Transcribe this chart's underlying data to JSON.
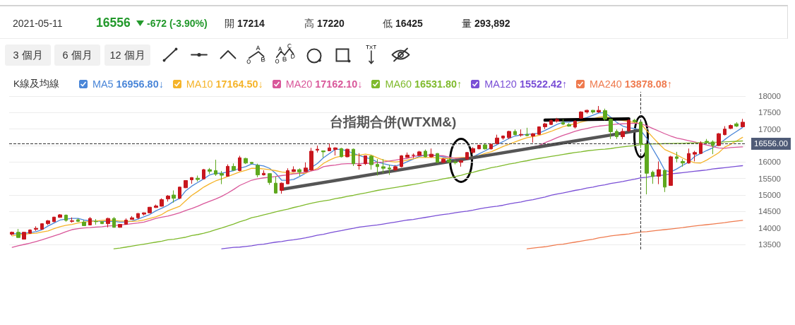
{
  "chart_data": {
    "type": "candlestick",
    "title": "台指期合併(WTXM&)",
    "legend_title": "K線及均線",
    "categories": [
      null,
      null,
      null,
      null,
      null,
      null,
      null,
      null,
      null,
      null,
      null,
      null,
      null,
      null,
      null,
      null,
      null,
      null,
      null,
      null,
      null,
      null,
      null,
      null,
      null,
      null,
      null,
      null,
      null,
      null,
      null,
      null,
      null,
      null,
      null,
      null,
      null,
      null,
      null,
      null,
      null,
      null,
      null,
      null,
      null,
      null,
      null,
      null,
      null,
      null,
      null,
      null,
      null,
      null,
      null,
      null,
      null,
      null,
      null,
      null,
      null,
      null,
      null,
      null,
      null,
      null,
      null,
      null,
      null,
      null,
      null,
      null,
      null,
      null,
      null,
      null,
      null,
      null,
      null,
      null,
      null,
      null,
      null,
      null,
      null,
      null,
      null,
      null,
      null,
      null,
      null,
      null,
      null,
      null,
      null,
      null,
      null,
      null,
      null,
      null,
      null,
      null,
      null,
      null,
      null,
      null,
      null,
      null,
      null,
      null,
      null,
      null,
      null,
      null,
      null,
      null,
      null,
      null,
      null,
      null,
      null,
      null,
      null
    ],
    "ohlc": [
      [
        13810,
        13890,
        13770,
        13870
      ],
      [
        13870,
        13970,
        13710,
        13710
      ],
      [
        13660,
        13880,
        13660,
        13870
      ],
      [
        13840,
        13960,
        13820,
        13940
      ],
      [
        13960,
        14050,
        13910,
        13990
      ],
      [
        13960,
        14140,
        13960,
        14130
      ],
      [
        14130,
        14240,
        14090,
        14220
      ],
      [
        14190,
        14340,
        14180,
        14330
      ],
      [
        14320,
        14420,
        14310,
        14400
      ],
      [
        14390,
        14410,
        14190,
        14230
      ],
      [
        14200,
        14320,
        14160,
        14220
      ],
      [
        14250,
        14290,
        14180,
        14200
      ],
      [
        14180,
        14240,
        14060,
        14070
      ],
      [
        14090,
        14330,
        14090,
        14290
      ],
      [
        14200,
        14270,
        14100,
        14190
      ],
      [
        14190,
        14200,
        14120,
        14130
      ],
      [
        14130,
        14310,
        14020,
        14290
      ],
      [
        14290,
        14330,
        14010,
        14020
      ],
      [
        14020,
        14120,
        14010,
        14110
      ],
      [
        14110,
        14290,
        14100,
        14240
      ],
      [
        14260,
        14360,
        14250,
        14310
      ],
      [
        14310,
        14450,
        14270,
        14440
      ],
      [
        14420,
        14470,
        14380,
        14460
      ],
      [
        14460,
        14640,
        14440,
        14630
      ],
      [
        14620,
        14710,
        14610,
        14670
      ],
      [
        14660,
        14900,
        14650,
        14860
      ],
      [
        14880,
        15000,
        14800,
        14970
      ],
      [
        15000,
        15140,
        14770,
        14900
      ],
      [
        14900,
        15250,
        14880,
        15240
      ],
      [
        15220,
        15450,
        15210,
        15440
      ],
      [
        15460,
        15540,
        15340,
        15530
      ],
      [
        15510,
        15590,
        15410,
        15470
      ],
      [
        15490,
        15790,
        15480,
        15770
      ],
      [
        15770,
        15820,
        15640,
        15720
      ],
      [
        15740,
        16070,
        15580,
        15630
      ],
      [
        15650,
        15730,
        15330,
        15600
      ],
      [
        15570,
        15930,
        15560,
        15870
      ],
      [
        15870,
        15960,
        15740,
        15750
      ],
      [
        15740,
        16190,
        15720,
        16130
      ],
      [
        16110,
        16130,
        15940,
        15970
      ],
      [
        15990,
        16000,
        15930,
        15960
      ],
      [
        15900,
        15950,
        15540,
        15610
      ],
      [
        15610,
        15750,
        15590,
        15660
      ],
      [
        15650,
        15660,
        15310,
        15380
      ],
      [
        15360,
        15560,
        15040,
        15060
      ],
      [
        15140,
        15380,
        15040,
        15360
      ],
      [
        15340,
        15810,
        15330,
        15740
      ],
      [
        15710,
        15870,
        15700,
        15770
      ],
      [
        15770,
        15810,
        15570,
        15700
      ],
      [
        15710,
        15990,
        15700,
        15820
      ],
      [
        15760,
        16430,
        15740,
        16330
      ],
      [
        16360,
        16500,
        16290,
        16390
      ],
      [
        16340,
        16350,
        16140,
        16310
      ],
      [
        16340,
        16560,
        16340,
        16430
      ],
      [
        16380,
        16450,
        16200,
        16430
      ],
      [
        16410,
        16430,
        16140,
        16160
      ],
      [
        16160,
        16410,
        16140,
        16390
      ],
      [
        16390,
        16410,
        15880,
        15950
      ],
      [
        15890,
        16270,
        15770,
        15910
      ],
      [
        15950,
        16200,
        15910,
        16190
      ],
      [
        16180,
        16220,
        15770,
        15920
      ],
      [
        15930,
        16090,
        15590,
        15860
      ],
      [
        15860,
        16090,
        15660,
        15810
      ],
      [
        15820,
        15920,
        15610,
        15790
      ],
      [
        15760,
        15910,
        15740,
        15860
      ],
      [
        15860,
        16210,
        15840,
        16190
      ],
      [
        16140,
        16290,
        16130,
        16210
      ],
      [
        16200,
        16260,
        16120,
        16210
      ],
      [
        16200,
        16340,
        16190,
        16310
      ],
      [
        16330,
        16380,
        16140,
        16160
      ],
      [
        16160,
        16410,
        16130,
        16240
      ],
      [
        16260,
        16270,
        15970,
        15990
      ],
      [
        15990,
        16130,
        15970,
        16090
      ],
      [
        16070,
        16110,
        15950,
        16000
      ],
      [
        16000,
        16060,
        15930,
        15980
      ],
      [
        15990,
        16060,
        15860,
        16040
      ],
      [
        16090,
        16300,
        16080,
        16290
      ],
      [
        16290,
        16450,
        16260,
        16410
      ],
      [
        16400,
        16520,
        16390,
        16510
      ],
      [
        16520,
        16540,
        16380,
        16400
      ],
      [
        16400,
        16560,
        16380,
        16540
      ],
      [
        16560,
        16830,
        16540,
        16730
      ],
      [
        16730,
        16810,
        16680,
        16790
      ],
      [
        16740,
        16950,
        16700,
        16930
      ],
      [
        16930,
        16990,
        16810,
        16830
      ],
      [
        16820,
        16990,
        16770,
        16840
      ],
      [
        16840,
        17040,
        16790,
        16800
      ],
      [
        16790,
        16880,
        16590,
        16860
      ],
      [
        16840,
        17080,
        16830,
        17070
      ],
      [
        17070,
        17190,
        17000,
        17160
      ],
      [
        17140,
        17290,
        17130,
        17260
      ],
      [
        17240,
        17340,
        17200,
        17290
      ],
      [
        17200,
        17300,
        17120,
        17150
      ],
      [
        17140,
        17180,
        17070,
        17090
      ],
      [
        17060,
        17270,
        17020,
        17240
      ],
      [
        17330,
        17540,
        17310,
        17520
      ],
      [
        17520,
        17590,
        17470,
        17570
      ],
      [
        17570,
        17580,
        17470,
        17520
      ],
      [
        17520,
        17700,
        17490,
        17570
      ],
      [
        17560,
        17620,
        17260,
        17300
      ],
      [
        17300,
        17320,
        16700,
        16920
      ],
      [
        16930,
        16990,
        16700,
        16770
      ],
      [
        16770,
        17020,
        16700,
        16930
      ],
      [
        16950,
        17290,
        16910,
        17270
      ],
      [
        17270,
        17310,
        17190,
        17228
      ],
      [
        17214,
        17220,
        16425,
        16556
      ],
      [
        16520,
        16540,
        15020,
        15660
      ],
      [
        15690,
        15740,
        15340,
        15560
      ],
      [
        15570,
        16020,
        15330,
        15770
      ],
      [
        15750,
        15760,
        15090,
        15240
      ],
      [
        15290,
        16190,
        15280,
        16160
      ],
      [
        16160,
        16310,
        15990,
        16110
      ],
      [
        16020,
        16090,
        15860,
        15970
      ],
      [
        15970,
        16410,
        15950,
        16260
      ],
      [
        16240,
        16340,
        16020,
        16290
      ],
      [
        16260,
        16630,
        16240,
        16570
      ],
      [
        16630,
        16700,
        16570,
        16590
      ],
      [
        16610,
        16660,
        16240,
        16500
      ],
      [
        16500,
        16880,
        16490,
        16860
      ],
      [
        16830,
        17090,
        16810,
        17000
      ],
      [
        17020,
        17140,
        17000,
        17110
      ],
      [
        17160,
        17210,
        17060,
        17090
      ],
      [
        17070,
        17310,
        17060,
        17210
      ]
    ],
    "colors": [
      "#c8161d",
      "#5ea81e",
      "#c8161d",
      "#c8161d",
      "#c8161d",
      "#c8161d",
      "#c8161d",
      "#c8161d",
      "#c8161d",
      "#5ea81e",
      "#c8161d",
      "#5ea81e",
      "#5ea81e",
      "#c8161d",
      "#5ea81e",
      "#5ea81e",
      "#c8161d",
      "#5ea81e",
      "#c8161d",
      "#c8161d",
      "#c8161d",
      "#c8161d",
      "#c8161d",
      "#c8161d",
      "#c8161d",
      "#c8161d",
      "#c8161d",
      "#5ea81e",
      "#c8161d",
      "#c8161d",
      "#c8161d",
      "#5ea81e",
      "#c8161d",
      "#5ea81e",
      "#5ea81e",
      "#5ea81e",
      "#c8161d",
      "#5ea81e",
      "#c8161d",
      "#5ea81e",
      "#5ea81e",
      "#5ea81e",
      "#c8161d",
      "#5ea81e",
      "#5ea81e",
      "#c8161d",
      "#c8161d",
      "#c8161d",
      "#5ea81e",
      "#c8161d",
      "#c8161d",
      "#c8161d",
      "#5ea81e",
      "#c8161d",
      "#c8161d",
      "#5ea81e",
      "#c8161d",
      "#5ea81e",
      "#c8161d",
      "#c8161d",
      "#5ea81e",
      "#5ea81e",
      "#5ea81e",
      "#5ea81e",
      "#c8161d",
      "#c8161d",
      "#c8161d",
      "#c8161d",
      "#c8161d",
      "#5ea81e",
      "#c8161d",
      "#5ea81e",
      "#c8161d",
      "#5ea81e",
      "#5ea81e",
      "#c8161d",
      "#c8161d",
      "#c8161d",
      "#c8161d",
      "#5ea81e",
      "#c8161d",
      "#c8161d",
      "#c8161d",
      "#c8161d",
      "#5ea81e",
      "#c8161d",
      "#5ea81e",
      "#c8161d",
      "#c8161d",
      "#c8161d",
      "#c8161d",
      "#c8161d",
      "#5ea81e",
      "#5ea81e",
      "#c8161d",
      "#c8161d",
      "#c8161d",
      "#5ea81e",
      "#c8161d",
      "#5ea81e",
      "#5ea81e",
      "#5ea81e",
      "#c8161d",
      "#c8161d",
      "#5ea81e",
      "#5ea81e",
      "#5ea81e",
      "#5ea81e",
      "#c8161d",
      "#5ea81e",
      "#c8161d",
      "#5ea81e",
      "#5ea81e",
      "#c8161d",
      "#c8161d",
      "#c8161d",
      "#5ea81e",
      "#5ea81e",
      "#c8161d",
      "#c8161d",
      "#c8161d",
      "#5ea81e",
      "#c8161d"
    ],
    "series": [
      {
        "type": "line",
        "name": "MA5 16956.80↓",
        "color": "#4a86d8",
        "values": [
          13820,
          13830,
          13840,
          13860,
          13890,
          13950,
          14060,
          14150,
          14240,
          14270,
          14290,
          14290,
          14240,
          14220,
          14210,
          14200,
          14200,
          14200,
          14180,
          14180,
          14210,
          14270,
          14340,
          14410,
          14520,
          14600,
          14690,
          14810,
          14900,
          15130,
          15270,
          15380,
          15490,
          15610,
          15660,
          15660,
          15700,
          15740,
          15810,
          15860,
          15940,
          15910,
          15880,
          15810,
          15660,
          15450,
          15450,
          15470,
          15560,
          15660,
          15840,
          15960,
          16130,
          16260,
          16390,
          16380,
          16340,
          16260,
          16200,
          16140,
          16090,
          16000,
          15950,
          15910,
          15880,
          15930,
          16010,
          16090,
          16170,
          16210,
          16220,
          16190,
          16160,
          16100,
          16070,
          16040,
          16090,
          16160,
          16250,
          16340,
          16440,
          16530,
          16620,
          16720,
          16790,
          16820,
          16840,
          16850,
          16880,
          16960,
          17050,
          17140,
          17210,
          17210,
          17250,
          17300,
          17350,
          17420,
          17490,
          17500,
          17360,
          17200,
          17090,
          17040,
          17020,
          16956.8,
          16720,
          16400,
          16090,
          15750,
          15700,
          15790,
          15900,
          16000,
          16170,
          16260,
          16350,
          16430,
          16540,
          16680,
          16810,
          16930,
          17050
        ]
      },
      {
        "type": "line",
        "name": "MA10 17164.50↓",
        "color": "#f5b42a",
        "values": [
          13760,
          13790,
          13810,
          13830,
          13840,
          13880,
          13910,
          13980,
          14040,
          14080,
          14110,
          14150,
          14180,
          14200,
          14210,
          14230,
          14240,
          14230,
          14210,
          14210,
          14200,
          14210,
          14240,
          14290,
          14340,
          14410,
          14520,
          14590,
          14660,
          14830,
          14990,
          15110,
          15240,
          15340,
          15430,
          15490,
          15560,
          15630,
          15700,
          15750,
          15810,
          15810,
          15790,
          15770,
          15740,
          15700,
          15680,
          15660,
          15660,
          15660,
          15740,
          15810,
          15960,
          16060,
          16140,
          16180,
          16210,
          16210,
          16210,
          16240,
          16210,
          16130,
          16060,
          16020,
          16000,
          16020,
          16060,
          16100,
          16140,
          16140,
          16140,
          16130,
          16110,
          16110,
          16130,
          16140,
          16140,
          16160,
          16200,
          16260,
          16310,
          16390,
          16470,
          16540,
          16610,
          16680,
          16740,
          16770,
          16810,
          16870,
          16930,
          17000,
          17070,
          17120,
          17160,
          17210,
          17260,
          17310,
          17360,
          17390,
          17330,
          17290,
          17260,
          17230,
          17200,
          17164.5,
          16950,
          16750,
          16560,
          16380,
          16300,
          16220,
          16120,
          16040,
          15980,
          15970,
          16060,
          16170,
          16280,
          16450,
          16540,
          16640,
          16750
        ]
      },
      {
        "type": "line",
        "name": "MA20 17162.10↓",
        "color": "#d9579a",
        "values": [
          13410,
          13460,
          13500,
          13540,
          13590,
          13640,
          13700,
          13760,
          13820,
          13890,
          13950,
          13980,
          14000,
          14010,
          14030,
          14040,
          14060,
          14070,
          14090,
          14110,
          14130,
          14150,
          14180,
          14230,
          14290,
          14330,
          14360,
          14410,
          14460,
          14530,
          14590,
          14660,
          14740,
          14810,
          14880,
          14960,
          15060,
          15170,
          15290,
          15370,
          15450,
          15490,
          15520,
          15540,
          15560,
          15590,
          15610,
          15640,
          15660,
          15690,
          15730,
          15770,
          15860,
          15890,
          15910,
          15940,
          15950,
          15950,
          15950,
          15960,
          15960,
          15990,
          16000,
          16030,
          16060,
          16090,
          16110,
          16160,
          16210,
          16210,
          16210,
          16200,
          16190,
          16150,
          16110,
          16120,
          16120,
          16140,
          16160,
          16200,
          16240,
          16260,
          16290,
          16320,
          16360,
          16390,
          16430,
          16460,
          16500,
          16590,
          16660,
          16740,
          16810,
          16870,
          16930,
          16980,
          17020,
          17060,
          17090,
          17110,
          17130,
          17150,
          17160,
          17170,
          17180,
          17162.1,
          17100,
          17020,
          16940,
          16860,
          16790,
          16730,
          16690,
          16650,
          16610,
          16560,
          16520,
          16470,
          16430,
          16420,
          16440,
          16450,
          16460
        ]
      },
      {
        "type": "line",
        "name": "MA60 16531.80↑",
        "color": "#7fba2c",
        "values": [
          null,
          null,
          null,
          null,
          null,
          null,
          null,
          null,
          null,
          null,
          null,
          null,
          null,
          null,
          null,
          null,
          null,
          13370,
          13390,
          13420,
          13450,
          13480,
          13510,
          13540,
          13570,
          13600,
          13640,
          13660,
          13690,
          13720,
          13770,
          13800,
          13840,
          13890,
          13950,
          14000,
          14060,
          14120,
          14190,
          14240,
          14310,
          14350,
          14400,
          14440,
          14490,
          14530,
          14570,
          14620,
          14660,
          14710,
          14750,
          14790,
          14820,
          14850,
          14890,
          14920,
          14960,
          14990,
          15030,
          15060,
          15100,
          15140,
          15170,
          15200,
          15230,
          15260,
          15290,
          15320,
          15350,
          15390,
          15420,
          15450,
          15490,
          15520,
          15560,
          15600,
          15650,
          15690,
          15740,
          15780,
          15830,
          15860,
          15900,
          15940,
          15970,
          16010,
          16040,
          16080,
          16110,
          16140,
          16170,
          16200,
          16230,
          16260,
          16290,
          16310,
          16340,
          16360,
          16380,
          16390,
          16410,
          16440,
          16460,
          16480,
          16500,
          16531.8,
          16540,
          16550,
          16550,
          16560,
          16560,
          16570,
          16570,
          16580,
          16580,
          16590,
          16590,
          16600,
          16600,
          16610,
          16620,
          16630,
          16640
        ]
      },
      {
        "type": "line",
        "name": "MA120 15522.42↑",
        "color": "#7a4fd6",
        "values": [
          null,
          null,
          null,
          null,
          null,
          null,
          null,
          null,
          null,
          null,
          null,
          null,
          null,
          null,
          null,
          null,
          null,
          null,
          null,
          null,
          null,
          null,
          null,
          null,
          null,
          null,
          null,
          null,
          null,
          null,
          null,
          null,
          null,
          null,
          null,
          13370,
          13390,
          13410,
          13420,
          13440,
          13460,
          13490,
          13510,
          13540,
          13570,
          13590,
          13620,
          13640,
          13670,
          13700,
          13740,
          13780,
          13810,
          13850,
          13890,
          13920,
          13960,
          13990,
          14030,
          14050,
          14070,
          14090,
          14120,
          14150,
          14180,
          14210,
          14240,
          14260,
          14290,
          14320,
          14350,
          14380,
          14410,
          14430,
          14460,
          14490,
          14510,
          14540,
          14580,
          14610,
          14640,
          14660,
          14690,
          14730,
          14760,
          14790,
          14830,
          14860,
          14900,
          14940,
          14990,
          15030,
          15060,
          15100,
          15140,
          15170,
          15210,
          15240,
          15280,
          15310,
          15350,
          15380,
          15410,
          15450,
          15480,
          15522.42,
          15540,
          15570,
          15590,
          15610,
          15640,
          15660,
          15680,
          15700,
          15720,
          15740,
          15760,
          15790,
          15810,
          15830,
          15850,
          15870,
          15890
        ]
      },
      {
        "type": "line",
        "name": "MA240 13878.08↑",
        "color": "#ef7b4f",
        "values": [
          null,
          null,
          null,
          null,
          null,
          null,
          null,
          null,
          null,
          null,
          null,
          null,
          null,
          null,
          null,
          null,
          null,
          null,
          null,
          null,
          null,
          null,
          null,
          null,
          null,
          null,
          null,
          null,
          null,
          null,
          null,
          null,
          null,
          null,
          null,
          null,
          null,
          null,
          null,
          null,
          null,
          null,
          null,
          null,
          null,
          null,
          null,
          null,
          null,
          null,
          null,
          null,
          null,
          null,
          null,
          null,
          null,
          null,
          null,
          null,
          null,
          null,
          null,
          null,
          null,
          null,
          null,
          null,
          null,
          null,
          null,
          null,
          null,
          null,
          null,
          null,
          null,
          null,
          null,
          null,
          null,
          null,
          null,
          null,
          null,
          null,
          13370,
          13390,
          13410,
          13430,
          13460,
          13490,
          13510,
          13540,
          13570,
          13600,
          13630,
          13660,
          13700,
          13730,
          13760,
          13780,
          13800,
          13820,
          13850,
          13878.08,
          13890,
          13910,
          13930,
          13950,
          13970,
          13990,
          14010,
          14040,
          14060,
          14080,
          14100,
          14120,
          14140,
          14160,
          14190,
          14210,
          14230
        ]
      },
      {
        "type": "line",
        "color": "#555555",
        "values": [
          null,
          null,
          null,
          null,
          null,
          null,
          null,
          null,
          null,
          null,
          null,
          null,
          null,
          null,
          null,
          null,
          null,
          null,
          null,
          null,
          null,
          null,
          null,
          null,
          null,
          null,
          null,
          null,
          null,
          null,
          null,
          null,
          null,
          null,
          null,
          null,
          null,
          null,
          null,
          null,
          null,
          null,
          null,
          null,
          null,
          15170,
          null,
          null,
          null,
          null,
          null,
          null,
          null,
          null,
          null,
          null,
          null,
          null,
          null,
          null,
          null,
          null,
          null,
          null,
          null,
          null,
          null,
          null,
          null,
          null,
          null,
          null,
          null,
          null,
          null,
          null,
          null,
          null,
          null,
          null,
          null,
          null,
          null,
          null,
          null,
          null,
          null,
          null,
          null,
          null,
          null,
          null,
          null,
          null,
          null,
          null,
          null,
          null,
          null,
          null,
          null,
          null,
          null,
          null,
          null,
          16970,
          null,
          null,
          null,
          null,
          null,
          null,
          null,
          null,
          null,
          null,
          null,
          null,
          null,
          null,
          null,
          null,
          null
        ]
      },
      {
        "type": "line",
        "color": "#000000",
        "values": [
          null,
          null,
          null,
          null,
          null,
          null,
          null,
          null,
          null,
          null,
          null,
          null,
          null,
          null,
          null,
          null,
          null,
          null,
          null,
          null,
          null,
          null,
          null,
          null,
          null,
          null,
          null,
          null,
          null,
          null,
          null,
          null,
          null,
          null,
          null,
          null,
          null,
          null,
          null,
          null,
          null,
          null,
          null,
          null,
          null,
          null,
          null,
          null,
          null,
          null,
          null,
          null,
          null,
          null,
          null,
          null,
          null,
          null,
          null,
          null,
          null,
          null,
          null,
          null,
          null,
          null,
          null,
          null,
          null,
          null,
          null,
          null,
          null,
          null,
          null,
          null,
          null,
          null,
          null,
          null,
          null,
          null,
          null,
          null,
          null,
          null,
          null,
          null,
          null,
          17270,
          null,
          null,
          null,
          null,
          null,
          null,
          null,
          null,
          null,
          null,
          null,
          null,
          null,
          17310,
          null,
          null,
          null,
          null,
          null,
          null,
          null,
          null,
          null,
          null,
          null,
          null,
          null,
          null,
          null,
          null,
          null,
          null,
          null
        ]
      }
    ],
    "ylim": [
      13350,
      18130
    ],
    "yticks": [
      13500,
      14000,
      14500,
      15000,
      15500,
      16000,
      {
        "value": 16500,
        "label": null
      },
      17000,
      17500,
      18000
    ],
    "grid": "y",
    "legend": "top left",
    "tick_labels": "y",
    "ref_lines": [
      {
        "axis": "y",
        "value": 16556,
        "label": "16556.00",
        "color": "#333333",
        "line_style": "dashed"
      }
    ],
    "annotations": [
      "2021-05-11",
      "16556",
      "-672 (-3.90%)",
      "開 17214",
      "高 17220",
      "低 16425",
      "量 293,892",
      "3 個月",
      "6 個月",
      "12 個月"
    ]
  }
}
